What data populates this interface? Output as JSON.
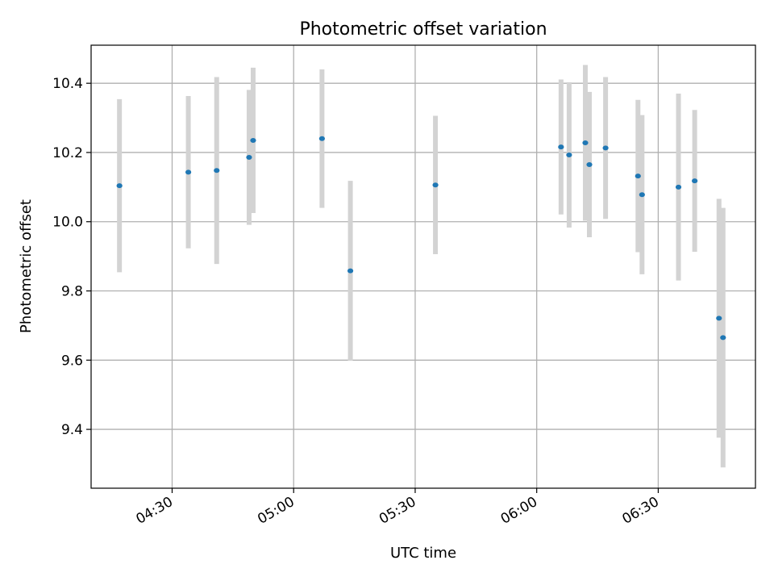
{
  "chart_data": {
    "type": "scatter",
    "title": "Photometric offset variation",
    "xlabel": "UTC time",
    "ylabel": "Photometric offset",
    "x_ticks": [
      "04:30",
      "05:00",
      "05:30",
      "06:00",
      "06:30"
    ],
    "y_ticks": [
      "9.4",
      "9.6",
      "9.8",
      "10.0",
      "10.2",
      "10.4"
    ],
    "xlim": [
      "04:10",
      "06:54"
    ],
    "ylim": [
      9.23,
      10.51
    ],
    "grid": true,
    "errorbar_color": "#d3d3d3",
    "marker_color": "#1f77b4",
    "points": [
      {
        "time": "04:17",
        "y": 10.104,
        "yerr": 0.25
      },
      {
        "time": "04:34",
        "y": 10.143,
        "yerr": 0.22
      },
      {
        "time": "04:41",
        "y": 10.148,
        "yerr": 0.27
      },
      {
        "time": "04:49",
        "y": 10.186,
        "yerr": 0.195
      },
      {
        "time": "04:50",
        "y": 10.235,
        "yerr": 0.21
      },
      {
        "time": "05:07",
        "y": 10.24,
        "yerr": 0.2
      },
      {
        "time": "05:14",
        "y": 9.858,
        "yerr": 0.26
      },
      {
        "time": "05:35",
        "y": 10.106,
        "yerr": 0.2
      },
      {
        "time": "06:06",
        "y": 10.216,
        "yerr": 0.195
      },
      {
        "time": "06:08",
        "y": 10.193,
        "yerr": 0.21
      },
      {
        "time": "06:12",
        "y": 10.228,
        "yerr": 0.225
      },
      {
        "time": "06:13",
        "y": 10.165,
        "yerr": 0.21
      },
      {
        "time": "06:17",
        "y": 10.213,
        "yerr": 0.205
      },
      {
        "time": "06:25",
        "y": 10.132,
        "yerr": 0.22
      },
      {
        "time": "06:26",
        "y": 10.078,
        "yerr": 0.23
      },
      {
        "time": "06:35",
        "y": 10.1,
        "yerr": 0.27
      },
      {
        "time": "06:39",
        "y": 10.118,
        "yerr": 0.205
      },
      {
        "time": "06:45",
        "y": 9.721,
        "yerr": 0.345
      },
      {
        "time": "06:46",
        "y": 9.665,
        "yerr": 0.375
      }
    ]
  }
}
